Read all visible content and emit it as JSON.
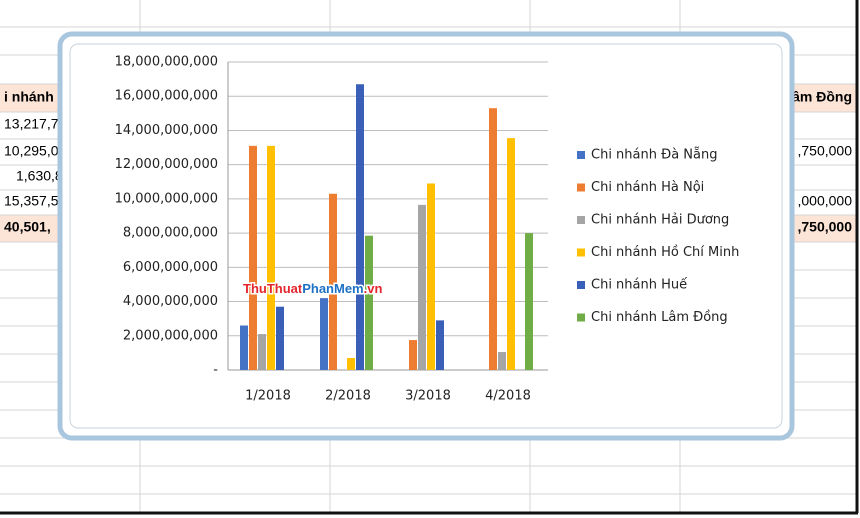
{
  "sheet": {
    "left_cells": [
      "i nhánh",
      "13,217,7",
      "10,295,0",
      "1,630,8",
      "15,357,5",
      "40,501,"
    ],
    "right_cells": [
      "âm Đồng",
      ",750,000",
      ",000,000",
      ",750,000"
    ]
  },
  "watermark": [
    "ThuThuat",
    "PhanMem",
    ".vn"
  ],
  "chart_data": {
    "type": "bar",
    "categories": [
      "1/2018",
      "2/2018",
      "3/2018",
      "4/2018"
    ],
    "series": [
      {
        "name": "Chi nhánh Đà Nẵng",
        "color": "#4472c4",
        "values": [
          2600000000,
          4200000000,
          0,
          0
        ]
      },
      {
        "name": "Chi nhánh Hà Nội",
        "color": "#ed7d31",
        "values": [
          13100000000,
          10300000000,
          1750000000,
          15300000000
        ]
      },
      {
        "name": "Chi nhánh Hải Dương",
        "color": "#a5a5a5",
        "values": [
          2100000000,
          0,
          9650000000,
          1050000000
        ]
      },
      {
        "name": "Chi nhánh Hồ Chí Minh",
        "color": "#ffc000",
        "values": [
          13100000000,
          700000000,
          10900000000,
          13550000000
        ]
      },
      {
        "name": "Chi nhánh Huế",
        "color": "#3a5fb8",
        "values": [
          3700000000,
          16700000000,
          2900000000,
          0
        ]
      },
      {
        "name": "Chi nhánh Lâm Đồng",
        "color": "#70ad47",
        "values": [
          0,
          7850000000,
          0,
          8000000000
        ]
      }
    ],
    "ylim": [
      0,
      18000000000
    ],
    "yticks": [
      {
        "value": 0,
        "label": "-"
      },
      {
        "value": 2000000000,
        "label": "2,000,000,000"
      },
      {
        "value": 4000000000,
        "label": "4,000,000,000"
      },
      {
        "value": 6000000000,
        "label": "6,000,000,000"
      },
      {
        "value": 8000000000,
        "label": "8,000,000,000"
      },
      {
        "value": 10000000000,
        "label": "10,000,000,000"
      },
      {
        "value": 12000000000,
        "label": "12,000,000,000"
      },
      {
        "value": 14000000000,
        "label": "14,000,000,000"
      },
      {
        "value": 16000000000,
        "label": "16,000,000,000"
      },
      {
        "value": 18000000000,
        "label": "18,000,000,000"
      }
    ],
    "grid": true,
    "legend": "right"
  }
}
